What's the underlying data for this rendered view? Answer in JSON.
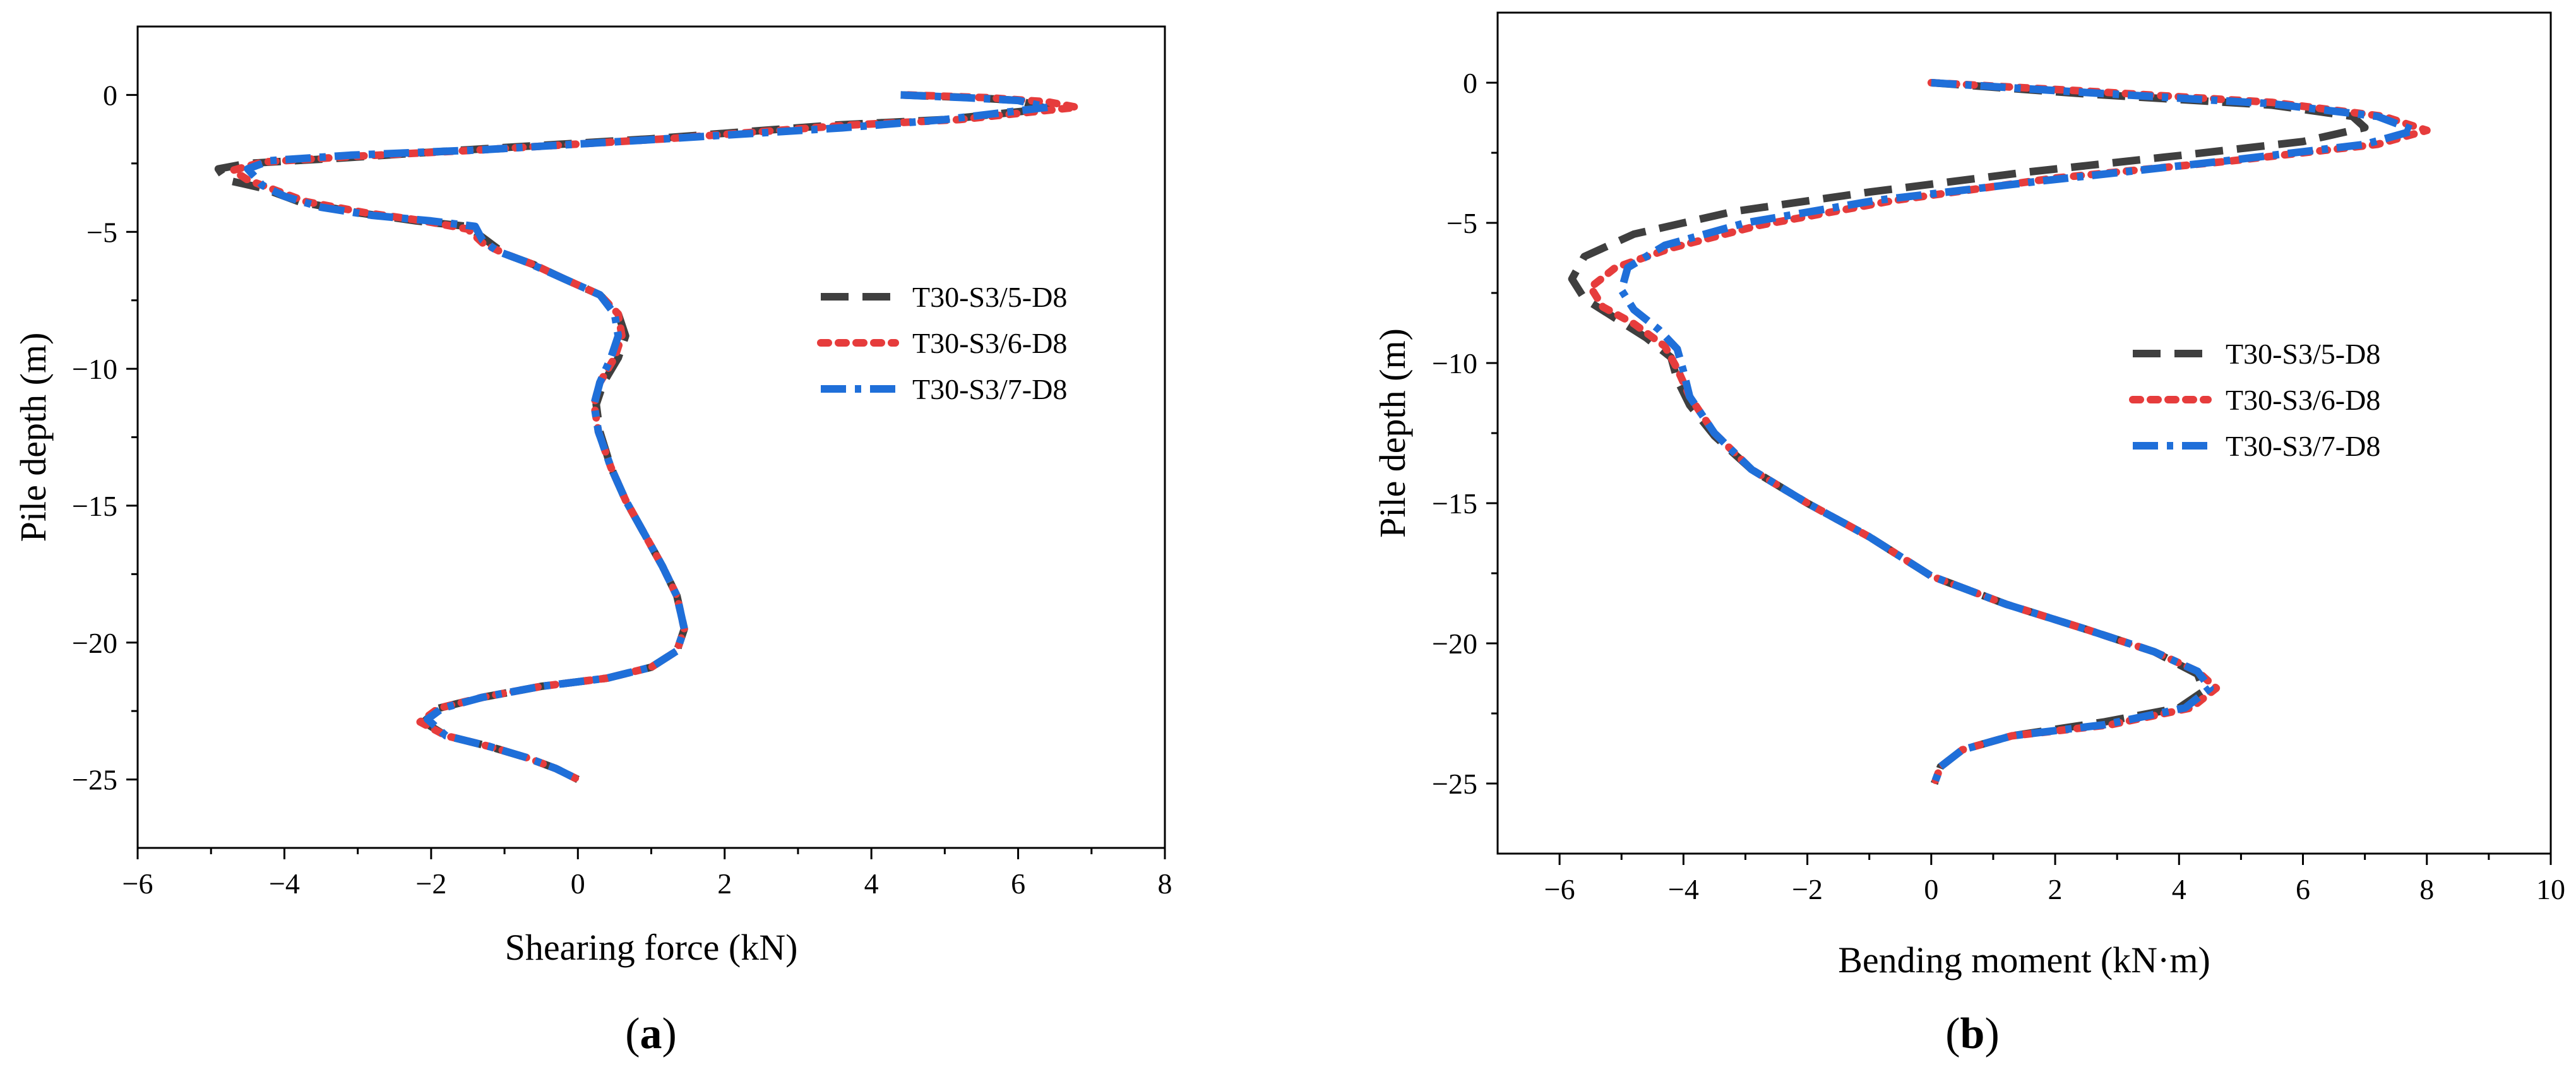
{
  "chart_data": [
    {
      "type": "line",
      "panel_label": "a",
      "xlabel": "Shearing force (kN)",
      "ylabel": "Pile depth (m)",
      "xlim": [
        -6,
        8
      ],
      "ylim": [
        -27.5,
        2.5
      ],
      "x_ticks": [
        -6,
        -4,
        -2,
        0,
        2,
        4,
        6,
        8
      ],
      "y_ticks": [
        0,
        -5,
        -10,
        -15,
        -20,
        -25
      ],
      "legend_position": "middle-right",
      "series": [
        {
          "name": "T30-S3/5-D8",
          "color": "#3f3f3f",
          "style": "dash",
          "points": [
            [
              4.4,
              0
            ],
            [
              5.4,
              -0.1
            ],
            [
              6.0,
              -0.2
            ],
            [
              6.4,
              -0.5
            ],
            [
              5.0,
              -0.9
            ],
            [
              3.5,
              -1.1
            ],
            [
              1.0,
              -1.6
            ],
            [
              -1.5,
              -2.0
            ],
            [
              -3.2,
              -2.3
            ],
            [
              -4.5,
              -2.5
            ],
            [
              -4.9,
              -2.7
            ],
            [
              -4.8,
              -3.1
            ],
            [
              -4.3,
              -3.4
            ],
            [
              -3.8,
              -3.9
            ],
            [
              -3.0,
              -4.3
            ],
            [
              -2.2,
              -4.6
            ],
            [
              -1.5,
              -4.8
            ],
            [
              -1.2,
              -5.4
            ],
            [
              -1.0,
              -5.8
            ],
            [
              -0.6,
              -6.2
            ],
            [
              -0.2,
              -6.7
            ],
            [
              0.3,
              -7.3
            ],
            [
              0.55,
              -8.0
            ],
            [
              0.65,
              -8.8
            ],
            [
              0.55,
              -9.6
            ],
            [
              0.35,
              -10.5
            ],
            [
              0.25,
              -11.3
            ],
            [
              0.3,
              -12.3
            ],
            [
              0.45,
              -13.6
            ],
            [
              0.65,
              -14.8
            ],
            [
              0.9,
              -16.0
            ],
            [
              1.15,
              -17.2
            ],
            [
              1.35,
              -18.3
            ],
            [
              1.45,
              -19.5
            ],
            [
              1.35,
              -20.3
            ],
            [
              1.0,
              -20.9
            ],
            [
              0.4,
              -21.3
            ],
            [
              -0.5,
              -21.6
            ],
            [
              -1.3,
              -22.0
            ],
            [
              -1.9,
              -22.4
            ],
            [
              -2.1,
              -22.9
            ],
            [
              -1.8,
              -23.4
            ],
            [
              -1.2,
              -23.8
            ],
            [
              -0.7,
              -24.2
            ],
            [
              -0.3,
              -24.6
            ],
            [
              0.0,
              -25.0
            ]
          ]
        },
        {
          "name": "T30-S3/6-D8",
          "color": "#e63c3c",
          "style": "dot",
          "points": [
            [
              4.5,
              0
            ],
            [
              5.6,
              -0.1
            ],
            [
              6.4,
              -0.25
            ],
            [
              6.8,
              -0.45
            ],
            [
              5.2,
              -0.9
            ],
            [
              3.7,
              -1.1
            ],
            [
              1.2,
              -1.6
            ],
            [
              -1.3,
              -2.0
            ],
            [
              -3.1,
              -2.25
            ],
            [
              -4.3,
              -2.45
            ],
            [
              -4.7,
              -2.75
            ],
            [
              -4.5,
              -3.1
            ],
            [
              -4.2,
              -3.4
            ],
            [
              -3.7,
              -3.9
            ],
            [
              -2.9,
              -4.3
            ],
            [
              -2.1,
              -4.6
            ],
            [
              -1.5,
              -4.9
            ],
            [
              -1.3,
              -5.4
            ],
            [
              -1.0,
              -5.8
            ],
            [
              -0.6,
              -6.2
            ],
            [
              -0.2,
              -6.7
            ],
            [
              0.3,
              -7.3
            ],
            [
              0.55,
              -8.0
            ],
            [
              0.6,
              -8.8
            ],
            [
              0.5,
              -9.6
            ],
            [
              0.3,
              -10.5
            ],
            [
              0.22,
              -11.3
            ],
            [
              0.28,
              -12.3
            ],
            [
              0.45,
              -13.6
            ],
            [
              0.65,
              -14.8
            ],
            [
              0.9,
              -16.0
            ],
            [
              1.15,
              -17.2
            ],
            [
              1.35,
              -18.3
            ],
            [
              1.45,
              -19.5
            ],
            [
              1.35,
              -20.3
            ],
            [
              1.0,
              -20.9
            ],
            [
              0.4,
              -21.3
            ],
            [
              -0.5,
              -21.6
            ],
            [
              -1.3,
              -22.0
            ],
            [
              -1.9,
              -22.4
            ],
            [
              -2.15,
              -22.9
            ],
            [
              -1.8,
              -23.4
            ],
            [
              -1.2,
              -23.8
            ],
            [
              -0.7,
              -24.2
            ],
            [
              -0.3,
              -24.6
            ],
            [
              0.0,
              -25.0
            ]
          ]
        },
        {
          "name": "T30-S3/7-D8",
          "color": "#1f6fd9",
          "style": "dashdot",
          "points": [
            [
              4.4,
              0
            ],
            [
              5.3,
              -0.1
            ],
            [
              6.0,
              -0.2
            ],
            [
              6.4,
              -0.45
            ],
            [
              5.0,
              -0.9
            ],
            [
              3.6,
              -1.2
            ],
            [
              1.2,
              -1.6
            ],
            [
              -1.3,
              -2.0
            ],
            [
              -3.1,
              -2.2
            ],
            [
              -4.2,
              -2.4
            ],
            [
              -4.5,
              -2.7
            ],
            [
              -4.3,
              -3.3
            ],
            [
              -4.0,
              -3.7
            ],
            [
              -3.5,
              -4.1
            ],
            [
              -2.8,
              -4.4
            ],
            [
              -2.0,
              -4.6
            ],
            [
              -1.4,
              -4.8
            ],
            [
              -1.3,
              -5.3
            ],
            [
              -1.1,
              -5.7
            ],
            [
              -0.7,
              -6.1
            ],
            [
              -0.2,
              -6.7
            ],
            [
              0.3,
              -7.3
            ],
            [
              0.5,
              -8.0
            ],
            [
              0.55,
              -8.8
            ],
            [
              0.45,
              -9.6
            ],
            [
              0.3,
              -10.5
            ],
            [
              0.22,
              -11.3
            ],
            [
              0.28,
              -12.3
            ],
            [
              0.45,
              -13.6
            ],
            [
              0.65,
              -14.8
            ],
            [
              0.9,
              -16.0
            ],
            [
              1.15,
              -17.2
            ],
            [
              1.35,
              -18.3
            ],
            [
              1.45,
              -19.5
            ],
            [
              1.35,
              -20.3
            ],
            [
              1.0,
              -20.9
            ],
            [
              0.4,
              -21.3
            ],
            [
              -0.5,
              -21.6
            ],
            [
              -1.3,
              -22.0
            ],
            [
              -1.85,
              -22.4
            ],
            [
              -2.05,
              -22.8
            ],
            [
              -1.8,
              -23.4
            ],
            [
              -1.2,
              -23.8
            ],
            [
              -0.7,
              -24.2
            ],
            [
              -0.3,
              -24.6
            ],
            [
              0.0,
              -25.0
            ]
          ]
        }
      ]
    },
    {
      "type": "line",
      "panel_label": "b",
      "xlabel": "Bending moment (kN·m)",
      "ylabel": "Pile depth (m)",
      "xlim": [
        -7,
        10
      ],
      "ylim": [
        -27.5,
        2.5
      ],
      "x_ticks": [
        -6,
        -4,
        -2,
        0,
        2,
        4,
        6,
        8,
        10
      ],
      "y_ticks": [
        0,
        -5,
        -10,
        -15,
        -20,
        -25
      ],
      "legend_position": "middle-right",
      "series": [
        {
          "name": "T30-S3/5-D8",
          "color": "#3f3f3f",
          "style": "dash",
          "points": [
            [
              0,
              0
            ],
            [
              2.5,
              -0.4
            ],
            [
              5.5,
              -0.8
            ],
            [
              6.8,
              -1.2
            ],
            [
              7.0,
              -1.6
            ],
            [
              6.0,
              -2.1
            ],
            [
              4.0,
              -2.6
            ],
            [
              1.5,
              -3.2
            ],
            [
              -1.0,
              -3.9
            ],
            [
              -3.2,
              -4.6
            ],
            [
              -4.8,
              -5.4
            ],
            [
              -5.6,
              -6.2
            ],
            [
              -5.8,
              -7.0
            ],
            [
              -5.6,
              -7.7
            ],
            [
              -5.1,
              -8.4
            ],
            [
              -4.6,
              -9.1
            ],
            [
              -4.2,
              -9.8
            ],
            [
              -4.1,
              -10.6
            ],
            [
              -3.9,
              -11.5
            ],
            [
              -3.5,
              -12.6
            ],
            [
              -2.9,
              -13.8
            ],
            [
              -2.0,
              -15.0
            ],
            [
              -1.0,
              -16.2
            ],
            [
              0.0,
              -17.6
            ],
            [
              1.2,
              -18.6
            ],
            [
              2.5,
              -19.5
            ],
            [
              3.6,
              -20.3
            ],
            [
              4.3,
              -21.1
            ],
            [
              4.4,
              -21.7
            ],
            [
              4.0,
              -22.3
            ],
            [
              2.8,
              -22.8
            ],
            [
              1.3,
              -23.3
            ],
            [
              0.5,
              -23.8
            ],
            [
              0.15,
              -24.4
            ],
            [
              0.05,
              -25.0
            ]
          ]
        },
        {
          "name": "T30-S3/6-D8",
          "color": "#e63c3c",
          "style": "dot",
          "points": [
            [
              0,
              0
            ],
            [
              2.5,
              -0.3
            ],
            [
              5.5,
              -0.7
            ],
            [
              7.3,
              -1.2
            ],
            [
              8.0,
              -1.7
            ],
            [
              7.2,
              -2.2
            ],
            [
              4.8,
              -2.8
            ],
            [
              2.0,
              -3.4
            ],
            [
              -0.6,
              -4.2
            ],
            [
              -2.8,
              -5.1
            ],
            [
              -4.2,
              -5.9
            ],
            [
              -5.1,
              -6.6
            ],
            [
              -5.5,
              -7.3
            ],
            [
              -5.3,
              -8.0
            ],
            [
              -4.8,
              -8.6
            ],
            [
              -4.3,
              -9.4
            ],
            [
              -4.1,
              -10.2
            ],
            [
              -3.9,
              -11.2
            ],
            [
              -3.5,
              -12.5
            ],
            [
              -2.9,
              -13.8
            ],
            [
              -2.0,
              -15.0
            ],
            [
              -1.0,
              -16.2
            ],
            [
              0.0,
              -17.6
            ],
            [
              1.2,
              -18.6
            ],
            [
              2.5,
              -19.5
            ],
            [
              3.6,
              -20.3
            ],
            [
              4.3,
              -21.0
            ],
            [
              4.6,
              -21.6
            ],
            [
              4.2,
              -22.3
            ],
            [
              2.9,
              -22.9
            ],
            [
              1.3,
              -23.3
            ],
            [
              0.5,
              -23.8
            ],
            [
              0.15,
              -24.4
            ],
            [
              0.05,
              -25.0
            ]
          ]
        },
        {
          "name": "T30-S3/7-D8",
          "color": "#1f6fd9",
          "style": "dashdot",
          "points": [
            [
              0,
              0
            ],
            [
              2.5,
              -0.35
            ],
            [
              5.5,
              -0.75
            ],
            [
              7.2,
              -1.2
            ],
            [
              7.8,
              -1.7
            ],
            [
              7.0,
              -2.2
            ],
            [
              4.7,
              -2.8
            ],
            [
              1.8,
              -3.5
            ],
            [
              -0.9,
              -4.2
            ],
            [
              -3.0,
              -5.0
            ],
            [
              -4.3,
              -5.8
            ],
            [
              -4.9,
              -6.6
            ],
            [
              -5.0,
              -7.4
            ],
            [
              -4.8,
              -8.1
            ],
            [
              -4.4,
              -8.8
            ],
            [
              -4.1,
              -9.5
            ],
            [
              -4.0,
              -10.3
            ],
            [
              -3.9,
              -11.2
            ],
            [
              -3.5,
              -12.5
            ],
            [
              -2.9,
              -13.8
            ],
            [
              -2.0,
              -15.0
            ],
            [
              -1.0,
              -16.2
            ],
            [
              0.0,
              -17.6
            ],
            [
              1.2,
              -18.6
            ],
            [
              2.5,
              -19.5
            ],
            [
              3.6,
              -20.3
            ],
            [
              4.3,
              -21.0
            ],
            [
              4.5,
              -21.6
            ],
            [
              4.1,
              -22.3
            ],
            [
              2.8,
              -22.9
            ],
            [
              1.3,
              -23.3
            ],
            [
              0.5,
              -23.8
            ],
            [
              0.15,
              -24.4
            ],
            [
              0.05,
              -25.0
            ]
          ]
        }
      ]
    }
  ]
}
